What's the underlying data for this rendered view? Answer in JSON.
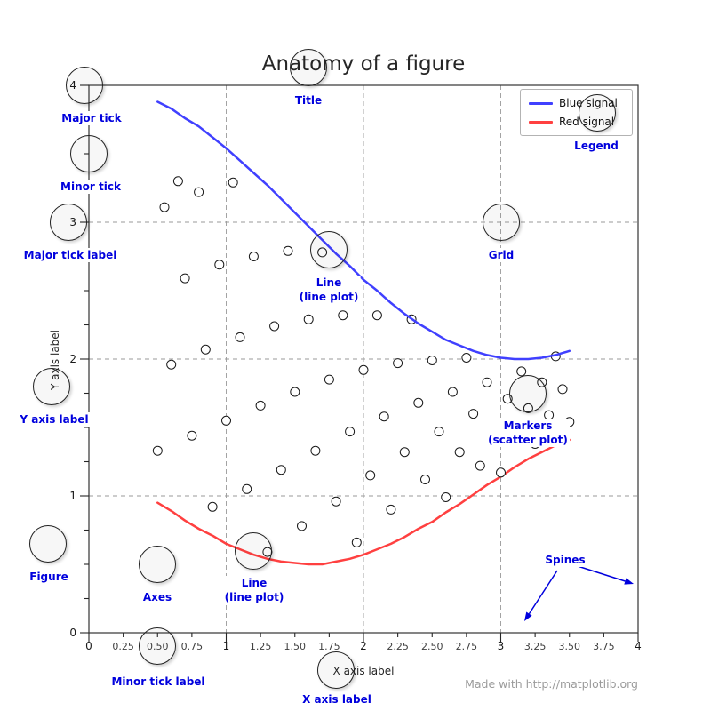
{
  "colors": {
    "blue_signal": "#4040ff",
    "red_signal": "#ff4040",
    "annotation": "#0000dd",
    "grid": "#9a9a9a",
    "spine": "#333333",
    "watermark": "#9b9b9b"
  },
  "watermark": "Made with http://matplotlib.org",
  "chart_data": {
    "type": "line+scatter",
    "title": "Anatomy of a figure",
    "x_axis": {
      "label": "X axis label",
      "lim": [
        0,
        4
      ],
      "major": {
        "values": [
          0,
          1,
          2,
          3,
          4
        ],
        "labels": [
          "0",
          "1",
          "2",
          "3",
          "4"
        ]
      },
      "minor": {
        "values": [
          0.25,
          0.5,
          0.75,
          1.25,
          1.5,
          1.75,
          2.25,
          2.5,
          2.75,
          3.25,
          3.5,
          3.75
        ],
        "labels": [
          "0.25",
          "0.50",
          "0.75",
          "1.25",
          "1.50",
          "1.75",
          "2.25",
          "2.50",
          "2.75",
          "3.25",
          "3.50",
          "3.75"
        ]
      }
    },
    "y_axis": {
      "label": "Y axis label",
      "lim": [
        0,
        4
      ],
      "major": {
        "values": [
          0,
          1,
          2,
          3,
          4
        ],
        "labels": [
          "0",
          "1",
          "2",
          "3",
          "4"
        ]
      },
      "minor": {
        "values": [
          0.25,
          0.5,
          0.75,
          1.25,
          1.5,
          1.75,
          2.25,
          2.5,
          2.75,
          3.25,
          3.5,
          3.75
        ],
        "labels": []
      }
    },
    "grid": {
      "x": [
        1,
        2,
        3
      ],
      "y": [
        1,
        2,
        3
      ],
      "style": "dashed"
    },
    "legend": {
      "position": "upper right"
    },
    "series": [
      {
        "name": "Blue signal",
        "type": "line",
        "color": "#4040ff",
        "x": [
          0.5,
          0.6,
          0.7,
          0.8,
          0.9,
          1.0,
          1.1,
          1.2,
          1.3,
          1.4,
          1.5,
          1.6,
          1.7,
          1.8,
          1.9,
          2.0,
          2.1,
          2.2,
          2.3,
          2.4,
          2.5,
          2.6,
          2.7,
          2.8,
          2.9,
          3.0,
          3.1,
          3.2,
          3.3,
          3.4,
          3.5
        ],
        "y": [
          3.88,
          3.83,
          3.76,
          3.7,
          3.62,
          3.54,
          3.45,
          3.36,
          3.27,
          3.17,
          3.07,
          2.97,
          2.87,
          2.77,
          2.68,
          2.58,
          2.5,
          2.41,
          2.33,
          2.26,
          2.2,
          2.14,
          2.1,
          2.06,
          2.03,
          2.01,
          2.0,
          2.0,
          2.01,
          2.03,
          2.06
        ]
      },
      {
        "name": "Red signal",
        "type": "line",
        "color": "#ff4040",
        "x": [
          0.5,
          0.6,
          0.7,
          0.8,
          0.9,
          1.0,
          1.1,
          1.2,
          1.3,
          1.4,
          1.5,
          1.6,
          1.7,
          1.8,
          1.9,
          2.0,
          2.1,
          2.2,
          2.3,
          2.4,
          2.5,
          2.6,
          2.7,
          2.8,
          2.9,
          3.0,
          3.1,
          3.2,
          3.3,
          3.4,
          3.5
        ],
        "y": [
          0.95,
          0.89,
          0.82,
          0.76,
          0.71,
          0.65,
          0.61,
          0.57,
          0.54,
          0.52,
          0.51,
          0.5,
          0.5,
          0.52,
          0.54,
          0.57,
          0.61,
          0.65,
          0.7,
          0.76,
          0.81,
          0.88,
          0.94,
          1.01,
          1.08,
          1.14,
          1.21,
          1.27,
          1.32,
          1.37,
          1.41
        ]
      },
      {
        "name": "scatter",
        "type": "scatter",
        "marker": "open-circle",
        "x": [
          0.5,
          0.55,
          0.6,
          0.65,
          0.7,
          0.75,
          0.8,
          0.85,
          0.9,
          0.95,
          1.0,
          1.05,
          1.1,
          1.15,
          1.2,
          1.25,
          1.3,
          1.35,
          1.4,
          1.45,
          1.5,
          1.55,
          1.6,
          1.65,
          1.7,
          1.75,
          1.8,
          1.85,
          1.9,
          1.95,
          2.0,
          2.05,
          2.1,
          2.15,
          2.2,
          2.25,
          2.3,
          2.35,
          2.4,
          2.45,
          2.5,
          2.55,
          2.6,
          2.65,
          2.7,
          2.75,
          2.8,
          2.85,
          2.9,
          2.95,
          3.0,
          3.05,
          3.1,
          3.15,
          3.2,
          3.25,
          3.3,
          3.35,
          3.4,
          3.45,
          3.5
        ],
        "y": [
          1.33,
          3.11,
          1.96,
          3.3,
          2.59,
          1.44,
          3.22,
          2.07,
          0.92,
          2.69,
          1.55,
          3.29,
          2.16,
          1.05,
          2.75,
          1.66,
          0.59,
          2.24,
          1.19,
          2.79,
          1.76,
          0.78,
          2.29,
          1.33,
          2.78,
          1.85,
          0.96,
          2.32,
          1.47,
          0.66,
          1.92,
          1.15,
          2.32,
          1.58,
          0.9,
          1.97,
          1.32,
          2.29,
          1.68,
          1.12,
          1.99,
          1.47,
          0.99,
          1.76,
          1.32,
          2.01,
          1.6,
          1.22,
          1.83,
          1.48,
          1.17,
          1.71,
          1.42,
          1.91,
          1.64,
          1.38,
          1.83,
          1.59,
          2.02,
          1.78,
          1.54
        ]
      }
    ]
  },
  "annotations": [
    {
      "label": "Major tick"
    },
    {
      "label": "Minor tick"
    },
    {
      "label": "Major tick label"
    },
    {
      "label": "Title"
    },
    {
      "label": "Legend"
    },
    {
      "label": "Grid"
    },
    {
      "label": "Line\n(line plot)"
    },
    {
      "label": "Y axis label"
    },
    {
      "label": "Markers\n(scatter plot)"
    },
    {
      "label": "Figure"
    },
    {
      "label": "Axes"
    },
    {
      "label": "Line\n(line plot)"
    },
    {
      "label": "Minor tick label"
    },
    {
      "label": "X axis label"
    },
    {
      "label": "Spines"
    }
  ]
}
